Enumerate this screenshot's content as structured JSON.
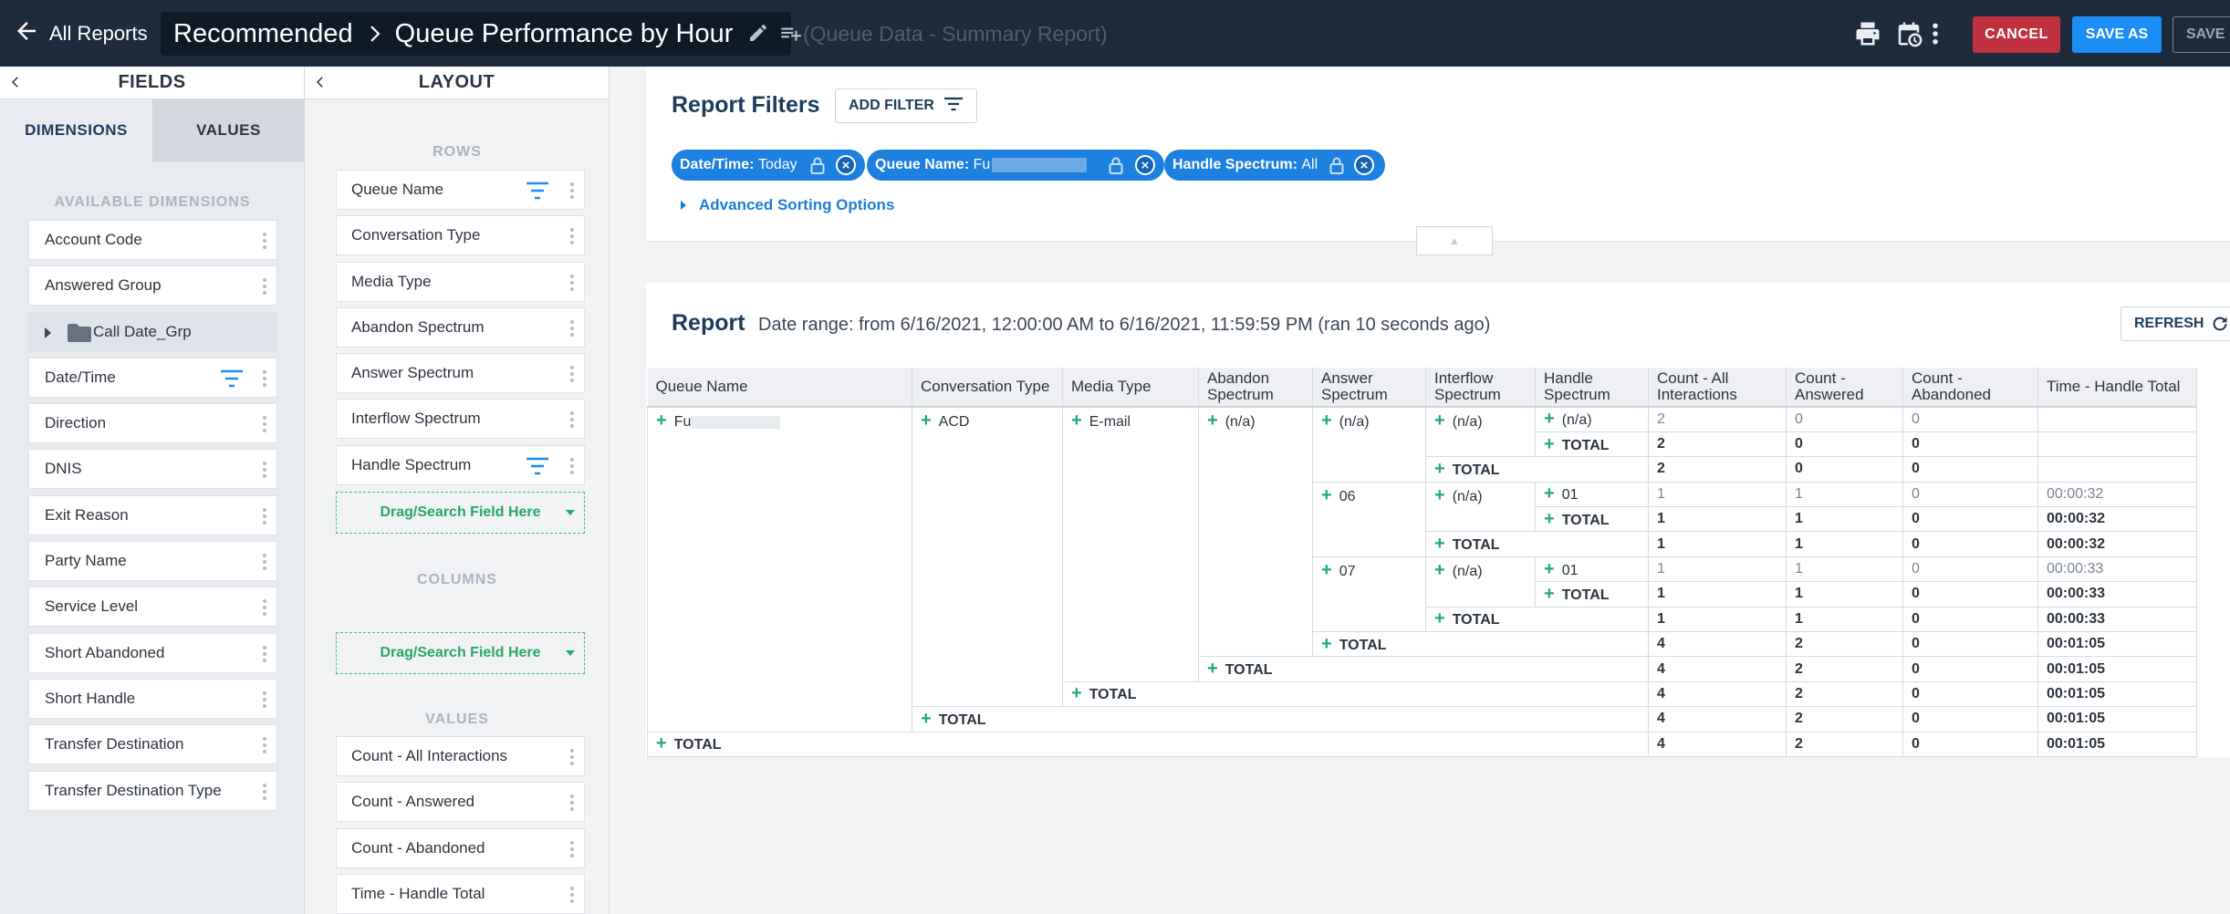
{
  "topbar": {
    "back_label": "All Reports",
    "crumb_parent": "Recommended",
    "crumb_title": "Queue Performance by Hour",
    "subtitle": "(Queue Data - Summary Report)",
    "cancel_label": "CANCEL",
    "save_as_label": "SAVE AS",
    "save_label": "SAVE"
  },
  "fields_panel": {
    "title": "FIELDS",
    "tab_dimensions": "DIMENSIONS",
    "tab_values": "VALUES",
    "available_label": "AVAILABLE DIMENSIONS",
    "items": [
      "Account Code",
      "Answered Group",
      "Call Date_Grp",
      "Date/Time",
      "Direction",
      "DNIS",
      "Exit Reason",
      "Party Name",
      "Service Level",
      "Short Abandoned",
      "Short Handle",
      "Transfer Destination",
      "Transfer Destination Type"
    ]
  },
  "layout_panel": {
    "title": "LAYOUT",
    "rows_label": "ROWS",
    "rows": [
      "Queue Name",
      "Conversation Type",
      "Media Type",
      "Abandon Spectrum",
      "Answer Spectrum",
      "Interflow Spectrum",
      "Handle Spectrum"
    ],
    "drop_label": "Drag/Search Field Here",
    "columns_label": "COLUMNS",
    "values_label": "VALUES",
    "values": [
      "Count - All Interactions",
      "Count - Answered",
      "Count - Abandoned",
      "Time - Handle Total"
    ]
  },
  "filters": {
    "title": "Report Filters",
    "add_filter_label": "ADD FILTER",
    "chips": [
      {
        "key": "Date/Time:",
        "value": "Today"
      },
      {
        "key": "Queue Name:",
        "value": "Fu"
      },
      {
        "key": "Handle Spectrum:",
        "value": "All"
      }
    ],
    "advanced_sorting": "Advanced Sorting Options"
  },
  "report": {
    "title": "Report",
    "date_range": "Date range: from 6/16/2021, 12:00:00 AM to 6/16/2021, 11:59:59 PM (ran 10 seconds ago)",
    "refresh_label": "REFRESH",
    "headers": [
      "Queue Name",
      "Conversation Type",
      "Media Type",
      "Abandon Spectrum",
      "Answer Spectrum",
      "Interflow Spectrum",
      "Handle Spectrum",
      "Count - All Interactions",
      "Count - Answered",
      "Count - Abandoned",
      "Time - Handle Total"
    ],
    "queue_name": "Fu",
    "conversation_type": "ACD",
    "media_type": "E-mail",
    "abandon_spectrum": "(n/a)",
    "answer_groups": [
      {
        "answer": "(n/a)",
        "interflow": "(n/a)",
        "handle": "(n/a)",
        "detail": [
          "2",
          "0",
          "0",
          ""
        ],
        "handle_total": [
          "2",
          "0",
          "0",
          ""
        ],
        "interflow_total": [
          "2",
          "0",
          "0",
          ""
        ]
      },
      {
        "answer": "06",
        "interflow": "(n/a)",
        "handle": "01",
        "detail": [
          "1",
          "1",
          "0",
          "00:00:32"
        ],
        "handle_total": [
          "1",
          "1",
          "0",
          "00:00:32"
        ],
        "interflow_total": [
          "1",
          "1",
          "0",
          "00:00:32"
        ]
      },
      {
        "answer": "07",
        "interflow": "(n/a)",
        "handle": "01",
        "detail": [
          "1",
          "1",
          "0",
          "00:00:33"
        ],
        "handle_total": [
          "1",
          "1",
          "0",
          "00:00:33"
        ],
        "interflow_total": [
          "1",
          "1",
          "0",
          "00:00:33"
        ]
      }
    ],
    "total_label": "TOTAL",
    "totals": {
      "answer": [
        "4",
        "2",
        "0",
        "00:01:05"
      ],
      "abandon": [
        "4",
        "2",
        "0",
        "00:01:05"
      ],
      "media": [
        "4",
        "2",
        "0",
        "00:01:05"
      ],
      "conversation": [
        "4",
        "2",
        "0",
        "00:01:05"
      ],
      "queue": [
        "4",
        "2",
        "0",
        "00:01:05"
      ]
    }
  }
}
